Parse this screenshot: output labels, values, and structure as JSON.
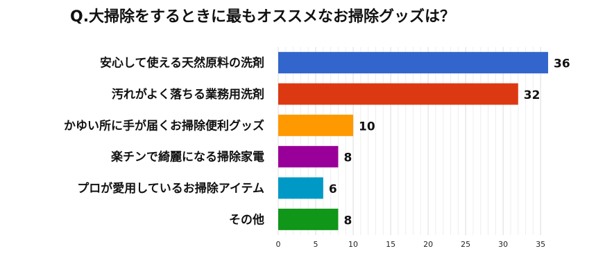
{
  "chart_data": {
    "type": "bar",
    "orientation": "horizontal",
    "title": "Q.大掃除をするときに最もオススメなお掃除グッズは？",
    "categories": [
      "安心して使える天然原料の洗剤",
      "汚れがよく落ちる業務用洗剤",
      "かゆい所に手が届くお掃除便利グッズ",
      "楽チンで綺麗になる掃除家電",
      "プロが愛用しているお掃除アイテム",
      "その他"
    ],
    "values": [
      36,
      32,
      10,
      8,
      6,
      8
    ],
    "value_labels": [
      "36",
      "32",
      "10",
      "8",
      "6",
      "8"
    ],
    "colors": [
      "#3366cc",
      "#dc3912",
      "#ff9900",
      "#990099",
      "#0099c6",
      "#109618"
    ],
    "xlim": [
      0,
      36
    ],
    "xticks": [
      0,
      5,
      10,
      15,
      20,
      25,
      30,
      35
    ],
    "xtick_labels": [
      "0",
      "5",
      "10",
      "15",
      "20",
      "25",
      "30",
      "35"
    ],
    "grid": true,
    "legend": "none"
  }
}
